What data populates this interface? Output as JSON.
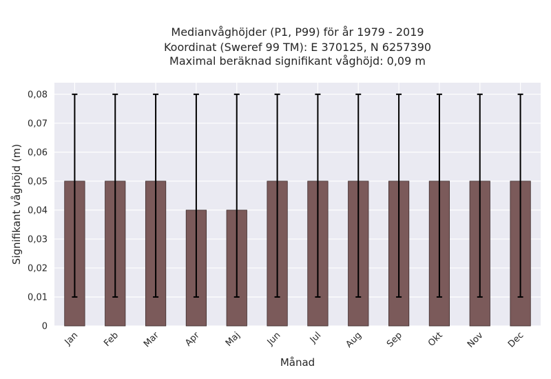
{
  "chart_data": {
    "type": "bar",
    "title_lines": [
      "Medianvåghöjder (P1, P99) för år 1979 - 2019",
      "Koordinat (Sweref 99 TM): E 370125, N 6257390",
      "Maximal beräknad signifikant våghöjd: 0,09 m"
    ],
    "xlabel": "Månad",
    "ylabel": "Signifikant våghöjd (m)",
    "categories": [
      "Jan",
      "Feb",
      "Mar",
      "Apr",
      "Maj",
      "Jun",
      "Jul",
      "Aug",
      "Sep",
      "Okt",
      "Nov",
      "Dec"
    ],
    "values": [
      0.05,
      0.05,
      0.05,
      0.04,
      0.04,
      0.05,
      0.05,
      0.05,
      0.05,
      0.05,
      0.05,
      0.05
    ],
    "error_low": [
      0.01,
      0.01,
      0.01,
      0.01,
      0.01,
      0.01,
      0.01,
      0.01,
      0.01,
      0.01,
      0.01,
      0.01
    ],
    "error_high": [
      0.08,
      0.08,
      0.08,
      0.08,
      0.08,
      0.08,
      0.08,
      0.08,
      0.08,
      0.08,
      0.08,
      0.08
    ],
    "ylim": [
      0,
      0.084
    ],
    "yticks": [
      0,
      0.01,
      0.02,
      0.03,
      0.04,
      0.05,
      0.06,
      0.07,
      0.08
    ],
    "ytick_labels": [
      "0",
      "0,01",
      "0,02",
      "0,03",
      "0,04",
      "0,05",
      "0,06",
      "0,07",
      "0,08"
    ],
    "grid": true,
    "colors": {
      "bar": "#7b5a5a",
      "bar_edge": "#3d2d2d",
      "error_bar": "#000000",
      "plot_background": "#eaeaf2",
      "grid": "#ffffff"
    }
  }
}
